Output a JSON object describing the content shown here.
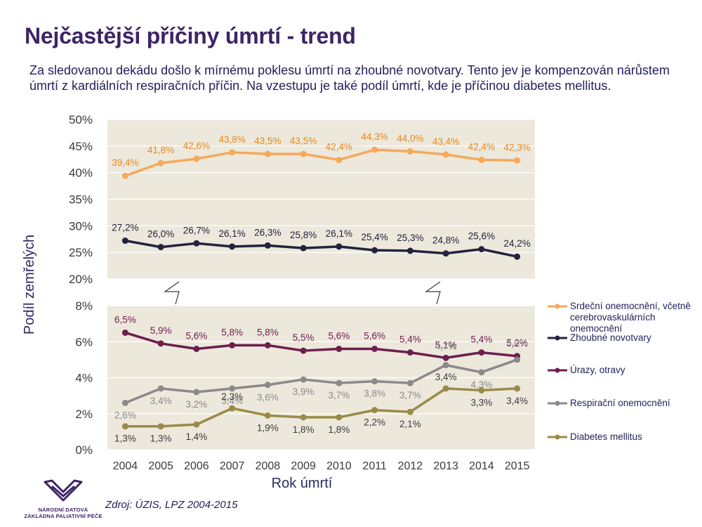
{
  "header": {
    "title": "Nejčastější příčiny úmrtí - trend",
    "subtitle": "Za sledovanou dekádu došlo k mírnému poklesu úmrtí na zhoubné novotvary. Tento jev je kompenzován nárůstem úmrtí z kardiálních respiračních příčin. Na vzestupu je také podíl úmrtí, kde je příčinou diabetes mellitus."
  },
  "footer": {
    "source": "Zdroj: ÚZIS, LPZ 2004-2015",
    "logo_line1": "NÁRODNÍ DATOVÁ",
    "logo_line2": "ZÁKLADNA PALIATIVNÍ PÉČE",
    "logo_color": "#3d2466"
  },
  "chart_data": {
    "type": "line",
    "xlabel": "Rok úmrtí",
    "ylabel": "Podíl zemřelých",
    "categories": [
      "2004",
      "2005",
      "2006",
      "2007",
      "2008",
      "2009",
      "2010",
      "2011",
      "2012",
      "2013",
      "2014",
      "2015"
    ],
    "panels": [
      {
        "ylim": [
          20,
          50
        ],
        "yticks": [
          "20%",
          "25%",
          "30%",
          "35%",
          "40%",
          "45%",
          "50%"
        ],
        "series_indices": [
          0,
          1
        ]
      },
      {
        "ylim": [
          0,
          8
        ],
        "yticks": [
          "0%",
          "2%",
          "4%",
          "6%",
          "8%"
        ],
        "series_indices": [
          2,
          3,
          4
        ]
      }
    ],
    "axis_break": true,
    "plot_background": "#ece8dc",
    "gridlines": true,
    "legend_position": "right",
    "series": [
      {
        "name": "Srdeční onemocnění, včetně cerebrovaskulárních onemocnění",
        "legend_lines": [
          "Srdeční onemocnění, včetně",
          "cerebrovaskulárních",
          "onemocnění"
        ],
        "color": "#f5a95a",
        "label_color": "#e8891e",
        "values": [
          39.4,
          41.8,
          42.6,
          43.8,
          43.5,
          43.5,
          42.4,
          44.3,
          44.0,
          43.4,
          42.4,
          42.3
        ],
        "labels": [
          "39,4%",
          "41,8%",
          "42,6%",
          "43,8%",
          "43,5%",
          "43,5%",
          "42,4%",
          "44,3%",
          "44,0%",
          "43,4%",
          "42,4%",
          "42,3%"
        ]
      },
      {
        "name": "Zhoubné novotvary",
        "legend_lines": [
          "Zhoubné novotvary"
        ],
        "color": "#23233f",
        "label_color": "#1f1f3a",
        "values": [
          27.2,
          26.0,
          26.7,
          26.1,
          26.3,
          25.8,
          26.1,
          25.4,
          25.3,
          24.8,
          25.6,
          24.2
        ],
        "labels": [
          "27,2%",
          "26,0%",
          "26,7%",
          "26,1%",
          "26,3%",
          "25,8%",
          "26,1%",
          "25,4%",
          "25,3%",
          "24,8%",
          "25,6%",
          "24,2%"
        ]
      },
      {
        "name": "Úrazy, otravy",
        "legend_lines": [
          "Úrazy, otravy"
        ],
        "color": "#6e1e4e",
        "label_color": "#6e1e4e",
        "values": [
          6.5,
          5.9,
          5.6,
          5.8,
          5.8,
          5.5,
          5.6,
          5.6,
          5.4,
          5.1,
          5.4,
          5.2
        ],
        "labels": [
          "6,5%",
          "5,9%",
          "5,6%",
          "5,8%",
          "5,8%",
          "5,5%",
          "5,6%",
          "5,6%",
          "5,4%",
          "5,1%",
          "5,4%",
          "5,2%"
        ]
      },
      {
        "name": "Respirační onemocnění",
        "legend_lines": [
          "Respirační onemocnění"
        ],
        "color": "#8a8a8a",
        "label_color": "#8a8a8a",
        "values": [
          2.6,
          3.4,
          3.2,
          3.4,
          3.6,
          3.9,
          3.7,
          3.8,
          3.7,
          4.7,
          4.3,
          5.0
        ],
        "labels": [
          "2,6%",
          "3,4%",
          "3,2%",
          "3,4%",
          "3,6%",
          "3,9%",
          "3,7%",
          "3,8%",
          "3,7%",
          "4,7%",
          "4,3%",
          "5,0%"
        ]
      },
      {
        "name": "Diabetes mellitus",
        "legend_lines": [
          "Diabetes mellitus"
        ],
        "color": "#9a8a48",
        "label_color": "#3a3a3a",
        "values": [
          1.3,
          1.3,
          1.4,
          2.3,
          1.9,
          1.8,
          1.8,
          2.2,
          2.1,
          3.4,
          3.3,
          3.4
        ],
        "labels": [
          "1,3%",
          "1,3%",
          "1,4%",
          "2,3%",
          "1,9%",
          "1,8%",
          "1,8%",
          "2,2%",
          "2,1%",
          "3,4%",
          "3,3%",
          "3,4%"
        ]
      }
    ]
  }
}
